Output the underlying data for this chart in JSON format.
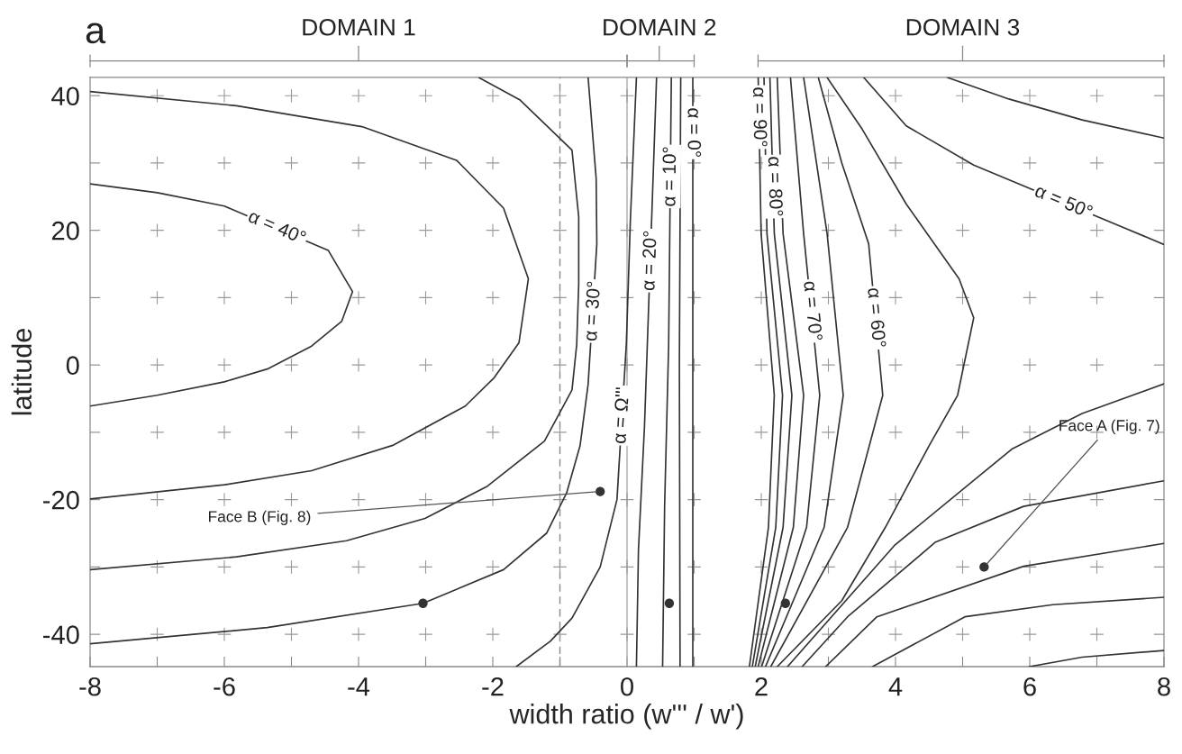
{
  "chart_data": {
    "type": "line",
    "xlabel": "width ratio (w''' / w')",
    "ylabel": "latitude",
    "xlim": [
      -8,
      8
    ],
    "ylim": [
      -44.8,
      42.7
    ],
    "xticks": [
      -8,
      {
        "value": -7,
        "label": null
      },
      -6,
      {
        "value": -5,
        "label": null
      },
      -4,
      {
        "value": -3,
        "label": null
      },
      -2,
      {
        "value": -1,
        "label": null
      },
      0,
      {
        "value": 1,
        "label": null
      },
      2,
      {
        "value": 3,
        "label": null
      },
      4,
      {
        "value": 5,
        "label": null
      },
      6,
      {
        "value": 7,
        "label": null
      },
      8
    ],
    "yticks": [
      -40,
      {
        "value": -30,
        "label": null
      },
      -20,
      {
        "value": -10,
        "label": null
      },
      0,
      {
        "value": 10,
        "label": null
      },
      20,
      {
        "value": 30,
        "label": null
      },
      40
    ],
    "ref_lines": [
      {
        "axis": "x",
        "value": -1,
        "color": "#888888",
        "line_style": "dashed"
      },
      {
        "axis": "x",
        "value": 0,
        "color": "#aaaaaa",
        "line_style": "solid"
      }
    ],
    "series": [
      {
        "color": "#333333",
        "x": [
          -8,
          -7,
          -6,
          -4.45,
          -4.09,
          -4.25,
          -4.7,
          -5.36,
          -6,
          -7,
          -8
        ],
        "values": [
          26.9,
          25.6,
          23.6,
          17,
          10.9,
          6.5,
          2.8,
          -0.6,
          -2.5,
          -4.5,
          -6.1
        ]
      },
      {
        "color": "#333333",
        "x": [
          -8,
          -5.82,
          -3.95,
          -2.54,
          -1.84,
          -1.47,
          -1.61,
          -1.98,
          -2.41,
          -3.48,
          -4.7,
          -6,
          -8
        ],
        "values": [
          40.6,
          38.5,
          35.4,
          30.4,
          23.3,
          12.8,
          3.3,
          -1.9,
          -6.1,
          -11.9,
          -15.7,
          -17.8,
          -19.9
        ]
      },
      {
        "color": "#333333",
        "x": [
          -2.21,
          -1.6,
          -0.82,
          -0.72,
          -0.72,
          -0.75,
          -0.82,
          -1.23,
          -2.08,
          -3.01,
          -4.18,
          -5.82,
          -8
        ],
        "values": [
          42.7,
          39.4,
          31.9,
          22,
          12,
          3,
          -3.7,
          -11.3,
          -18,
          -22.8,
          -26.1,
          -28.5,
          -30.4
        ]
      },
      {
        "color": "#333333",
        "x": [
          -0.58,
          -0.46,
          -0.45,
          -0.58,
          -0.7,
          -0.9,
          -1.2,
          -1.84,
          -3.04,
          -5.36,
          -8
        ],
        "values": [
          42.7,
          27.7,
          18,
          -2.9,
          -12,
          -19,
          -25,
          -30.4,
          -35.4,
          -39,
          -41.4
        ]
      },
      {
        "color": "#333333",
        "x": [
          0.14,
          0.05,
          -0.01,
          -0.15,
          -0.4,
          -0.82,
          -1.14,
          -1.65
        ],
        "values": [
          42.7,
          21.6,
          3.2,
          -20,
          -30,
          -37.6,
          -41,
          -44.8
        ]
      },
      {
        "color": "#333333",
        "x": [
          0.44,
          0.26,
          0.17,
          0.14
        ],
        "values": [
          42.7,
          -9.1,
          -27.5,
          -44.8
        ]
      },
      {
        "color": "#333333",
        "x": [
          0.66,
          0.62,
          0.56,
          0.53
        ],
        "values": [
          42.7,
          3,
          -21,
          -44.8
        ]
      },
      {
        "color": "#333333",
        "x": [
          0.8,
          0.78,
          0.79
        ],
        "values": [
          42.7,
          0,
          -44.8
        ]
      },
      {
        "color": "#333333",
        "x": [
          0.98,
          0.98
        ],
        "values": [
          42.7,
          -44.8
        ]
      },
      {
        "color": "#333333",
        "x": [
          1.954,
          1.998,
          2.194,
          2.107,
          1.823
        ],
        "values": [
          42.7,
          19.5,
          -4.5,
          -24.1,
          -44.8
        ]
      },
      {
        "color": "#333333",
        "x": [
          2.041,
          2.085,
          2.317,
          2.216,
          1.867
        ],
        "values": [
          42.7,
          19.5,
          -4.5,
          -24.1,
          -44.8
        ]
      },
      {
        "color": "#333333",
        "x": [
          2.129,
          2.194,
          2.456,
          2.325,
          1.91
        ],
        "values": [
          42.7,
          19.5,
          -4.5,
          -24.1,
          -44.8
        ]
      },
      {
        "color": "#333333",
        "x": [
          2.238,
          2.325,
          2.631,
          2.478,
          1.954
        ],
        "values": [
          42.7,
          19.5,
          -4.5,
          -24.1,
          -44.8
        ]
      },
      {
        "color": "#333333",
        "x": [
          2.435,
          2.631,
          2.871,
          2.675,
          2.006
        ],
        "values": [
          42.7,
          19.5,
          -4.5,
          -24.1,
          -44.8
        ]
      },
      {
        "color": "#333333",
        "x": [
          2.631,
          2.981,
          3.221,
          2.937,
          2.063
        ],
        "values": [
          42.7,
          19.5,
          -4.5,
          -24.1,
          -44.8
        ]
      },
      {
        "color": "#333333",
        "x": [
          2.85,
          3.2,
          3.6,
          3.81,
          3.286,
          2.142
        ],
        "values": [
          42.7,
          30,
          18,
          -4.5,
          -24.1,
          -44.8
        ]
      },
      {
        "color": "#333333",
        "x": [
          2.981,
          3.505,
          4.16,
          4.947,
          5.165,
          4.925,
          4.5,
          3.85,
          3.2,
          2.238
        ],
        "values": [
          42.7,
          35,
          23.9,
          12.8,
          7,
          -4.5,
          -12,
          -24.1,
          -35,
          -44.8
        ]
      },
      {
        "color": "#333333",
        "x": [
          3.527,
          4.16,
          5.165,
          8
        ],
        "values": [
          42.7,
          35.5,
          29.7,
          17.9
        ]
      },
      {
        "color": "#333333",
        "x": [
          4.772,
          5.689,
          6.781,
          8
        ],
        "values": [
          42.7,
          39.5,
          36.4,
          33.7
        ]
      },
      {
        "color": "#333333",
        "x": [
          2.391,
          3.985,
          5.733,
          6.781,
          8
        ],
        "values": [
          -44.8,
          -26.8,
          -12.5,
          -7.2,
          -2.8
        ]
      },
      {
        "color": "#333333",
        "x": [
          2.609,
          3.286,
          4.597,
          5.908,
          8
        ],
        "values": [
          -44.8,
          -37.4,
          -26.3,
          -21,
          -17.2
        ]
      },
      {
        "color": "#333333",
        "x": [
          2.959,
          3.723,
          5.908,
          8
        ],
        "values": [
          -44.8,
          -37.4,
          -29.9,
          -26.5
        ]
      },
      {
        "color": "#333333",
        "x": [
          3.658,
          5.034,
          6.345,
          8
        ],
        "values": [
          -44.8,
          -37.4,
          -35.6,
          -34.5
        ]
      },
      {
        "color": "#333333",
        "x": [
          5.995,
          6.781,
          8
        ],
        "values": [
          -44.8,
          -43.4,
          -42.4
        ]
      },
      {
        "type": "scatter",
        "marker": "cross",
        "color": "#999999",
        "x": [
          -7,
          -7,
          -7,
          -7,
          -7,
          -7,
          -7,
          -7,
          -7,
          -6,
          -6,
          -6,
          -6,
          -6,
          -6,
          -6,
          -6,
          -6,
          -5,
          -5,
          -5,
          -5,
          -5,
          -5,
          -5,
          -5,
          -4,
          -4,
          -4,
          -4,
          -4,
          -4,
          -4,
          -4,
          -4,
          -3,
          -3,
          -3,
          -3,
          -3,
          -3,
          -3,
          -3,
          -3,
          -2,
          -2,
          -2,
          -2,
          -2,
          -2,
          -2,
          -2,
          -2,
          -1,
          -1,
          -1,
          -1,
          -1,
          -1,
          -1,
          -1,
          -1,
          0,
          0,
          0,
          0,
          0,
          0,
          0,
          0,
          1,
          1,
          1,
          1,
          1,
          1,
          1,
          1,
          1,
          2,
          2,
          2,
          2,
          2,
          2,
          2,
          2,
          3,
          3,
          3,
          3,
          3,
          3,
          3,
          3,
          3,
          4,
          4,
          4,
          4,
          4,
          4,
          4,
          4,
          4,
          5,
          5,
          5,
          5,
          5,
          5,
          5,
          5,
          5,
          6,
          6,
          6,
          6,
          6,
          6,
          6,
          6,
          6,
          7,
          7,
          7,
          7,
          7,
          7,
          7,
          7,
          7
        ],
        "values": [
          -40,
          -30,
          -20,
          -10,
          0,
          10,
          20,
          30,
          40,
          -40,
          -30,
          -20,
          -10,
          0,
          10,
          20,
          30,
          40,
          -40,
          -30,
          -20,
          -10,
          0,
          10,
          30,
          40,
          -40,
          -30,
          -20,
          -10,
          0,
          10,
          20,
          30,
          40,
          -40,
          -30,
          -20,
          -10,
          0,
          10,
          20,
          30,
          40,
          -40,
          -30,
          -20,
          -10,
          0,
          10,
          20,
          30,
          40,
          -40,
          -30,
          -20,
          -10,
          0,
          10,
          20,
          30,
          40,
          -40,
          -30,
          -20,
          0,
          10,
          20,
          30,
          40,
          -40,
          -30,
          -20,
          -10,
          0,
          10,
          20,
          30,
          40,
          -40,
          -30,
          -20,
          -10,
          0,
          10,
          20,
          30,
          -40,
          -30,
          -20,
          -10,
          0,
          10,
          20,
          30,
          40,
          -40,
          -30,
          -20,
          -10,
          0,
          10,
          20,
          30,
          40,
          -40,
          -30,
          -20,
          -10,
          0,
          10,
          20,
          30,
          40,
          -40,
          -30,
          -20,
          -10,
          0,
          10,
          20,
          30,
          40,
          -40,
          -30,
          -20,
          -10,
          0,
          10,
          20,
          30,
          40
        ]
      },
      {
        "type": "scatter",
        "marker": "circle",
        "color": "#333333",
        "x": [
          -3.04,
          -0.4,
          0.63,
          2.36,
          5.32
        ],
        "values": [
          -35.4,
          -18.8,
          -35.4,
          -35.4,
          -30
        ]
      }
    ],
    "annotations": [
      "a",
      "DOMAIN 1",
      "DOMAIN 2",
      "DOMAIN 3",
      {
        "text": "α = 40°",
        "x": -5.22,
        "y": 20.3
      },
      {
        "text": "α = 30°",
        "x": -0.5,
        "y": 8
      },
      {
        "text": "α = Ω'''",
        "x": -0.07,
        "y": -7.5
      },
      {
        "text": "α = 20°",
        "x": 0.35,
        "y": 15.5
      },
      {
        "text": "α = 10°",
        "x": 0.65,
        "y": 28
      },
      {
        "text": "α = 0°",
        "x": 0.98,
        "y": 34.5
      },
      {
        "text": "α = 90°",
        "x": 1.96,
        "y": 36.8
      },
      {
        "text": "α = 80°",
        "x": 2.19,
        "y": 26.5
      },
      {
        "text": "α = 70°",
        "x": 2.75,
        "y": 8
      },
      {
        "text": "α = 60°",
        "x": 3.7,
        "y": 7
      },
      {
        "text": "α = 50°",
        "x": 6.5,
        "y": 24.1
      },
      {
        "text": "Face B (Fig. 8)",
        "x": -0.4,
        "y": -18.8
      },
      {
        "text": "Face A (Fig. 7)",
        "x": 5.32,
        "y": -30
      }
    ]
  }
}
